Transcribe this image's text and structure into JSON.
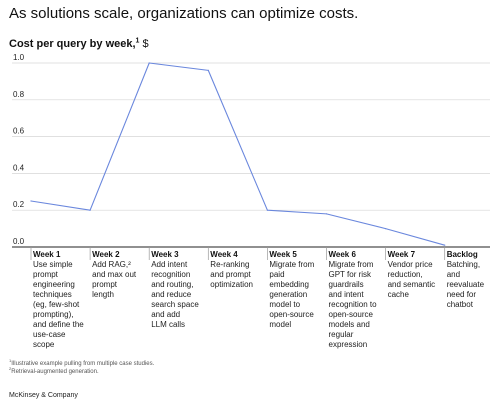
{
  "headline": "As solutions scale, organizations can optimize costs.",
  "chart_data": {
    "type": "line",
    "title": "Cost per query by week,",
    "title_superscript": "1",
    "unit": "$",
    "ylim": [
      0,
      1.0
    ],
    "yticks": [
      "0.0",
      "0.2",
      "0.4",
      "0.6",
      "0.8",
      "1.0"
    ],
    "ytick_values": [
      0,
      0.2,
      0.4,
      0.6,
      0.8,
      1.0
    ],
    "grid": "horizontal",
    "line_color": "#6a87dd",
    "x": [
      0,
      1,
      2,
      3,
      4,
      5,
      6,
      7
    ],
    "values": [
      0.25,
      0.2,
      1.0,
      0.96,
      0.2,
      0.18,
      0.1,
      0.01
    ],
    "categories": [
      {
        "heading": "Week 1",
        "description": [
          "Use simple",
          "prompt",
          "engineering",
          "techniques",
          "(eg, few-shot",
          "prompting),",
          "and define the",
          "use-case",
          "scope"
        ]
      },
      {
        "heading": "Week 2",
        "description": [
          "Add RAG,²",
          "and max out",
          "prompt",
          "length"
        ]
      },
      {
        "heading": "Week 3",
        "description": [
          "Add intent",
          "recognition",
          "and routing,",
          "and reduce",
          "search space",
          "and add",
          "LLM calls"
        ]
      },
      {
        "heading": "Week 4",
        "description": [
          "Re-ranking",
          "and prompt",
          "optimization"
        ]
      },
      {
        "heading": "Week 5",
        "description": [
          "Migrate from",
          "paid",
          "embedding",
          "generation",
          "model to",
          "open-source",
          "model"
        ]
      },
      {
        "heading": "Week 6",
        "description": [
          "Migrate from",
          "GPT for risk",
          "guardrails",
          "and intent",
          "recognition to",
          "open-source",
          "models and",
          "regular",
          "expression"
        ]
      },
      {
        "heading": "Week 7",
        "description": [
          "Vendor price",
          "reduction,",
          "and semantic",
          "cache"
        ]
      },
      {
        "heading": "Backlog",
        "description": [
          "Batching,",
          "and",
          "reevaluate",
          "need for",
          "chatbot"
        ]
      }
    ]
  },
  "footnotes": {
    "note1_marker": "1",
    "note1": "Illustrative example pulling from multiple case studies.",
    "note2_marker": "2",
    "note2": "Retrieval-augmented generation."
  },
  "brand": "McKinsey & Company"
}
